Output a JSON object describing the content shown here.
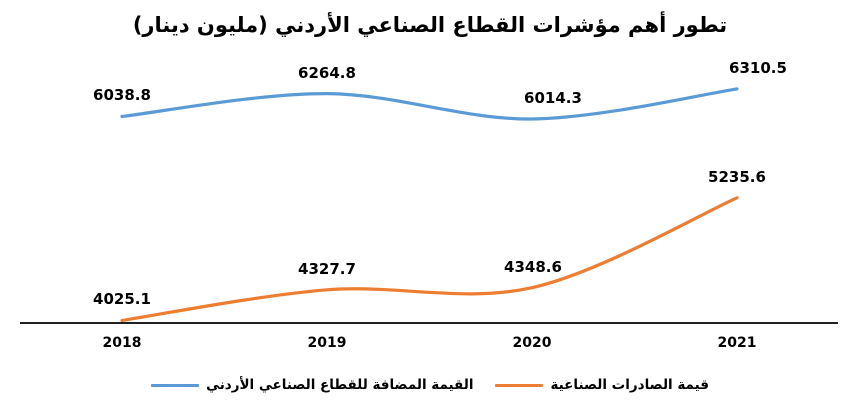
{
  "title": "تطور أهم مؤشرات القطاع الصناعي الأردني (مليون دينار)",
  "chart_data": {
    "type": "line",
    "smooth": true,
    "title": "تطور أهم مؤشرات القطاع الصناعي الأردني (مليون دينار)",
    "categories": [
      "2018",
      "2019",
      "2020",
      "2021"
    ],
    "series": [
      {
        "name": "القيمة المضافة للقطاع الصناعي الأردني",
        "color": "#5B9BD5",
        "values": [
          6038.8,
          6264.8,
          6014.3,
          6310.5
        ]
      },
      {
        "name": "قيمة الصادرات الصناعية",
        "color": "#ED7D31",
        "values": [
          4025.1,
          4327.7,
          4348.6,
          5235.6
        ]
      }
    ],
    "data_labels": true,
    "xlabel": "",
    "ylabel": "",
    "ylim": [
      4000,
      6600
    ],
    "grid": false,
    "legend_position": "bottom",
    "axis_color": "#000000",
    "text_color": "#000000"
  }
}
